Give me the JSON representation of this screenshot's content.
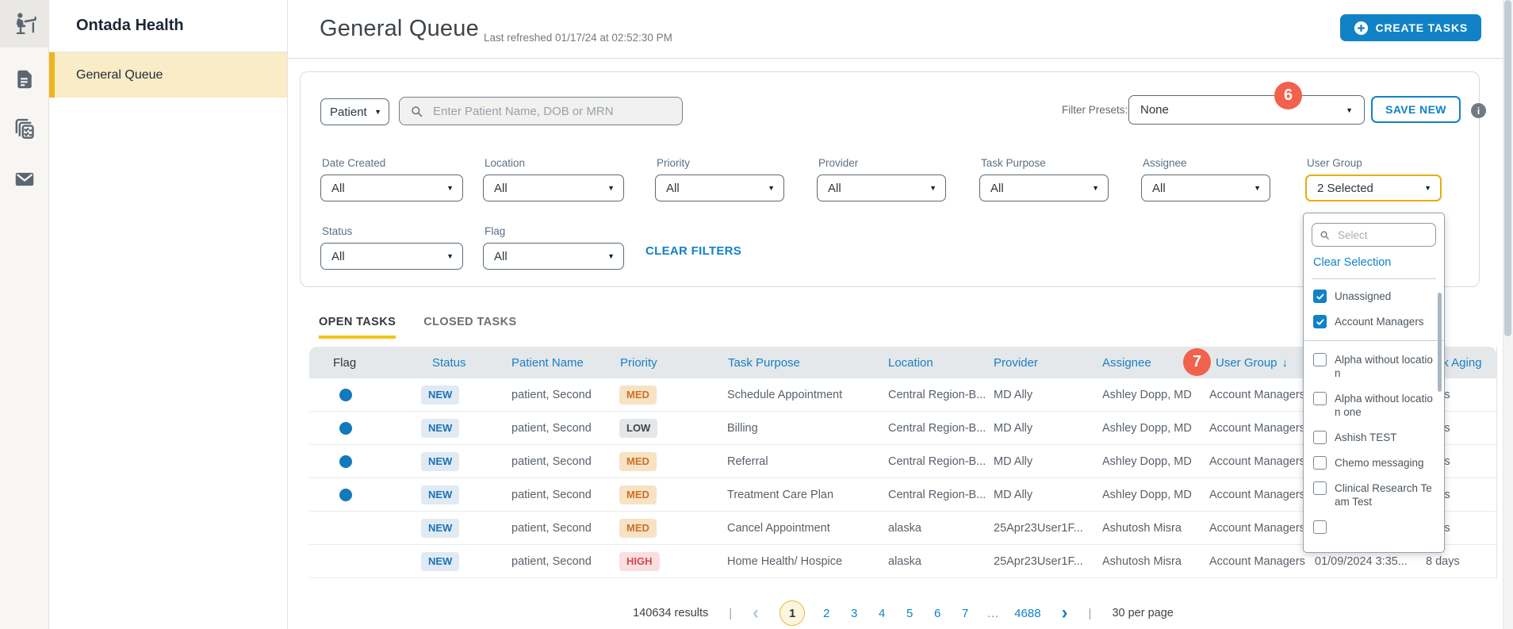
{
  "app": {
    "sidebar_title": "Ontada Health",
    "nav_item": "General Queue",
    "rail_icons": [
      "patient-chair-icon",
      "document-icon",
      "task-cards-icon",
      "mail-icon"
    ]
  },
  "header": {
    "title": "General Queue",
    "last_refreshed": "Last refreshed 01/17/24 at 02:52:30 PM",
    "create_button": "CREATE TASKS"
  },
  "search": {
    "category": "Patient",
    "placeholder": "Enter Patient Name, DOB or MRN"
  },
  "presets": {
    "label": "Filter Presets:",
    "value": "None",
    "save_button": "SAVE NEW",
    "info_icon": "i"
  },
  "filters": {
    "row1": [
      {
        "label": "Date Created",
        "value": "All"
      },
      {
        "label": "Location",
        "value": "All"
      },
      {
        "label": "Priority",
        "value": "All"
      },
      {
        "label": "Provider",
        "value": "All"
      },
      {
        "label": "Task Purpose",
        "value": "All"
      },
      {
        "label": "Assignee",
        "value": "All"
      },
      {
        "label": "User Group",
        "value": "2 Selected",
        "highlighted": true,
        "badge": "6"
      }
    ],
    "row2": [
      {
        "label": "Status",
        "value": "All"
      },
      {
        "label": "Flag",
        "value": "All"
      }
    ],
    "clear_button": "CLEAR FILTERS"
  },
  "user_group_dropdown": {
    "search_placeholder": "Select",
    "clear_link": "Clear Selection",
    "options": [
      {
        "label": "Unassigned",
        "checked": true
      },
      {
        "label": "Account Managers",
        "checked": true
      },
      {
        "label": "Alpha without location",
        "checked": false
      },
      {
        "label": "Alpha without location one",
        "checked": false
      },
      {
        "label": "Ashish TEST",
        "checked": false
      },
      {
        "label": "Chemo messaging",
        "checked": false
      },
      {
        "label": "Clinical Research Team Test",
        "checked": false
      }
    ]
  },
  "tabs": [
    {
      "label": "OPEN TASKS",
      "active": true
    },
    {
      "label": "CLOSED TASKS",
      "active": false
    }
  ],
  "table": {
    "columns": [
      "Flag",
      "Status",
      "Patient Name",
      "Priority",
      "Task Purpose",
      "Location",
      "Provider",
      "Assignee",
      "User Group",
      "",
      "Task Aging"
    ],
    "sort_column": "User Group",
    "sort_badge": "7",
    "rows": [
      {
        "flag": true,
        "status": "NEW",
        "patient": "patient, Second",
        "priority": "MED",
        "purpose": "Schedule Appointment",
        "location": "Central Region-B...",
        "provider": "MD Ally",
        "assignee": "Ashley Dopp, MD",
        "user_group": "Account Managers",
        "date": "",
        "aging": "days"
      },
      {
        "flag": true,
        "status": "NEW",
        "patient": "patient, Second",
        "priority": "LOW",
        "purpose": "Billing",
        "location": "Central Region-B...",
        "provider": "MD Ally",
        "assignee": "Ashley Dopp, MD",
        "user_group": "Account Managers",
        "date": "",
        "aging": "days"
      },
      {
        "flag": true,
        "status": "NEW",
        "patient": "patient, Second",
        "priority": "MED",
        "purpose": "Referral",
        "location": "Central Region-B...",
        "provider": "MD Ally",
        "assignee": "Ashley Dopp, MD",
        "user_group": "Account Managers",
        "date": "",
        "aging": "days"
      },
      {
        "flag": true,
        "status": "NEW",
        "patient": "patient, Second",
        "priority": "MED",
        "purpose": "Treatment Care Plan",
        "location": "Central Region-B...",
        "provider": "MD Ally",
        "assignee": "Ashley Dopp, MD",
        "user_group": "Account Managers",
        "date": "",
        "aging": "days"
      },
      {
        "flag": false,
        "status": "NEW",
        "patient": "patient, Second",
        "priority": "MED",
        "purpose": "Cancel Appointment",
        "location": "alaska",
        "provider": "25Apr23User1F...",
        "assignee": "Ashutosh Misra",
        "user_group": "Account Managers",
        "date": "",
        "aging": "days"
      },
      {
        "flag": false,
        "status": "NEW",
        "patient": "patient, Second",
        "priority": "HIGH",
        "purpose": "Home Health/ Hospice",
        "location": "alaska",
        "provider": "25Apr23User1F...",
        "assignee": "Ashutosh Misra",
        "user_group": "Account Managers",
        "date": "01/09/2024 3:35...",
        "aging": "8 days"
      }
    ]
  },
  "pagination": {
    "results": "140634 results",
    "separator": "|",
    "prev": "‹",
    "next": "›",
    "pages": [
      "1",
      "2",
      "3",
      "4",
      "5",
      "6",
      "7",
      "…",
      "4688"
    ],
    "current_page": "1",
    "per_page": "30 per page"
  },
  "colors": {
    "accent_blue": "#1182c5",
    "gold": "#edb41e",
    "tab_underline": "#f3c318",
    "badge_red": "#f2614b",
    "new_badge_text": "#1b72b8",
    "med_text": "#cd7029",
    "low_text": "#3e464d",
    "high_text": "#d44a4a",
    "flag_dot": "#1379bd",
    "header_bg": "#e4e8eb"
  },
  "icons": [
    "patient-chair-icon",
    "document-icon",
    "task-cards-icon",
    "mail-icon",
    "plus-icon",
    "search-icon",
    "info-icon",
    "chevron-down-icon",
    "sort-down-icon",
    "check-icon"
  ]
}
